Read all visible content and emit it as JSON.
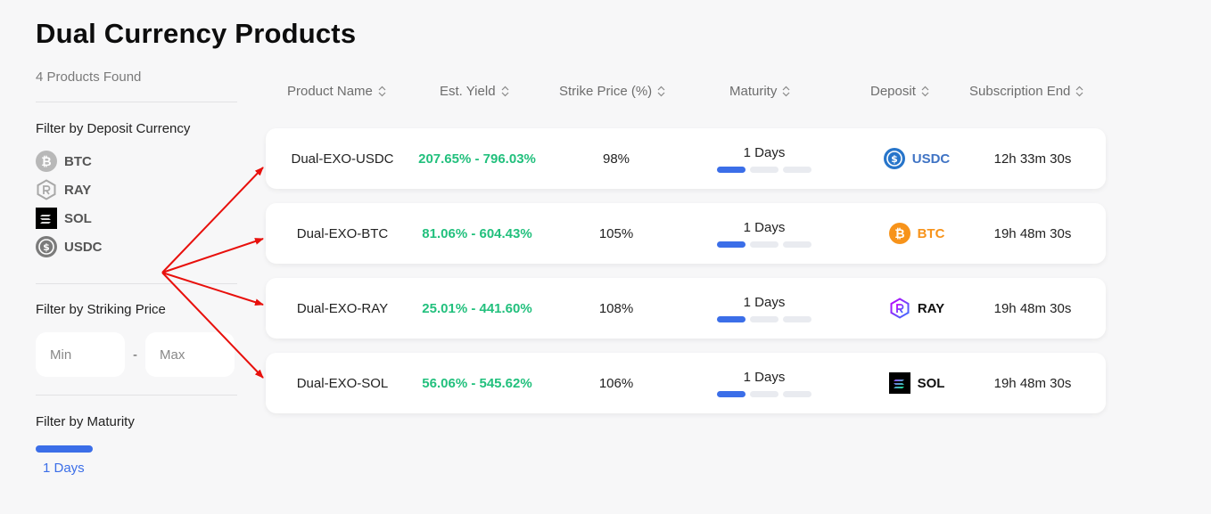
{
  "page": {
    "title": "Dual Currency Products"
  },
  "sidebar": {
    "found_text": "4 Products Found",
    "deposit_filter": {
      "title": "Filter by Deposit Currency",
      "items": [
        {
          "label": "BTC",
          "icon": "btc-icon"
        },
        {
          "label": "RAY",
          "icon": "ray-icon"
        },
        {
          "label": "SOL",
          "icon": "sol-icon"
        },
        {
          "label": "USDC",
          "icon": "usdc-icon"
        }
      ]
    },
    "price_filter": {
      "title": "Filter by Striking Price",
      "min_placeholder": "Min",
      "max_placeholder": "Max",
      "separator": "-"
    },
    "maturity_filter": {
      "title": "Filter by Maturity",
      "option": "1 Days",
      "accent": "#3b6ee8"
    }
  },
  "table": {
    "headers": [
      "Product Name",
      "Est. Yield",
      "Strike Price (%)",
      "Maturity",
      "Deposit",
      "Subscription End"
    ],
    "rows": [
      {
        "name": "Dual-EXO-USDC",
        "yield": "207.65% - 796.03%",
        "strike": "98%",
        "maturity": "1 Days",
        "deposit": "USDC",
        "deposit_color": "#3f73c4",
        "deposit_icon": "usdc-icon",
        "ends": "12h 33m 30s"
      },
      {
        "name": "Dual-EXO-BTC",
        "yield": "81.06% - 604.43%",
        "strike": "105%",
        "maturity": "1 Days",
        "deposit": "BTC",
        "deposit_color": "#f7931a",
        "deposit_icon": "btc-icon",
        "ends": "19h 48m 30s"
      },
      {
        "name": "Dual-EXO-RAY",
        "yield": "25.01% - 441.60%",
        "strike": "108%",
        "maturity": "1 Days",
        "deposit": "RAY",
        "deposit_color": "#111111",
        "deposit_icon": "ray-icon",
        "ends": "19h 48m 30s"
      },
      {
        "name": "Dual-EXO-SOL",
        "yield": "56.06% - 545.62%",
        "strike": "106%",
        "maturity": "1 Days",
        "deposit": "SOL",
        "deposit_color": "#111111",
        "deposit_icon": "sol-icon",
        "ends": "19h 48m 30s"
      }
    ]
  },
  "colors": {
    "yield": "#22c07d",
    "accent": "#3b6ee8",
    "annotation_arrow": "#e8100c"
  }
}
